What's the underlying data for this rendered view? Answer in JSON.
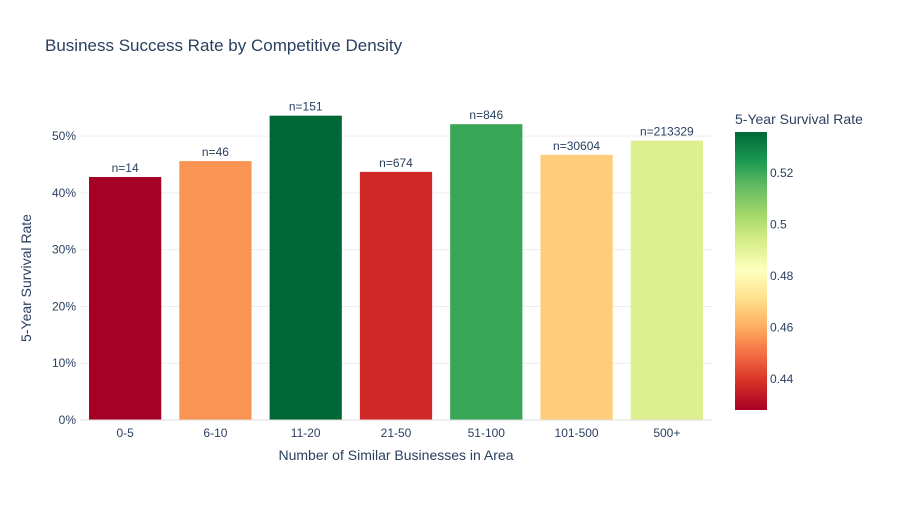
{
  "chart_data": {
    "type": "bar",
    "title": "Business Success Rate by Competitive Density",
    "xlabel": "Number of Similar Businesses in Area",
    "ylabel": "5-Year Survival Rate",
    "categories": [
      "0-5",
      "6-10",
      "11-20",
      "21-50",
      "51-100",
      "101-500",
      "500+"
    ],
    "values": [
      0.428,
      0.456,
      0.536,
      0.437,
      0.521,
      0.467,
      0.492
    ],
    "data_labels": [
      "n=14",
      "n=46",
      "n=151",
      "n=674",
      "n=846",
      "n=30604",
      "n=213329"
    ],
    "ylim": [
      0,
      0.5636
    ],
    "y_ticks": [
      0,
      0.1,
      0.2,
      0.3,
      0.4,
      0.5
    ],
    "y_tick_labels": [
      "0%",
      "10%",
      "20%",
      "30%",
      "40%",
      "50%"
    ],
    "grid": true,
    "colorbar": {
      "title": "5-Year Survival Rate",
      "range": [
        0.428,
        0.536
      ],
      "ticks": [
        0.44,
        0.46,
        0.48,
        0.5,
        0.52
      ],
      "tick_labels": [
        "0.44",
        "0.46",
        "0.48",
        "0.5",
        "0.52"
      ],
      "colorscale": "RdYlGn",
      "colorscale_stops": [
        "#a50026",
        "#d73027",
        "#f46d43",
        "#fdae61",
        "#fee08b",
        "#ffffbf",
        "#d9ef8b",
        "#a6d96a",
        "#66bd63",
        "#1a9850",
        "#006837"
      ]
    },
    "colors": {
      "text": "#2a3f5f",
      "grid": "#eeeeee",
      "axis_line": "#dddddd"
    }
  }
}
